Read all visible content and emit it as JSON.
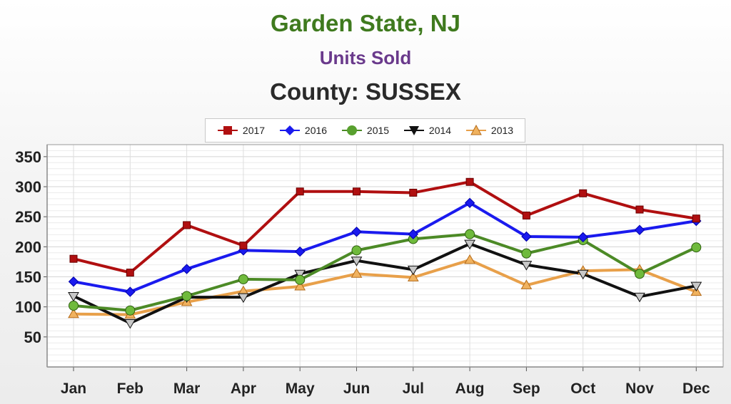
{
  "chart_data": {
    "type": "line",
    "title": "Garden State, NJ",
    "subtitle": "Units Sold",
    "subtitle2": "County: SUSSEX",
    "xlabel": "",
    "ylabel": "",
    "ylim": [
      0,
      370
    ],
    "yticks": [
      50,
      100,
      150,
      200,
      250,
      300,
      350
    ],
    "grid": true,
    "legend_position": "top-center",
    "categories": [
      "Jan",
      "Feb",
      "Mar",
      "Apr",
      "May",
      "Jun",
      "Jul",
      "Aug",
      "Sep",
      "Oct",
      "Nov",
      "Dec"
    ],
    "series": [
      {
        "name": "2017",
        "color": "#b00f10",
        "marker": "square",
        "values": [
          180,
          157,
          236,
          202,
          292,
          292,
          290,
          308,
          252,
          289,
          262,
          247
        ]
      },
      {
        "name": "2016",
        "color": "#1a1aee",
        "marker": "diamond",
        "values": [
          142,
          125,
          163,
          194,
          192,
          225,
          221,
          273,
          217,
          216,
          228,
          243
        ]
      },
      {
        "name": "2015",
        "color": "#4c8a26",
        "marker": "circle",
        "values": [
          102,
          94,
          118,
          146,
          145,
          194,
          213,
          221,
          189,
          211,
          155,
          199
        ]
      },
      {
        "name": "2014",
        "color": "#111111",
        "marker": "triangle-down",
        "values": [
          118,
          73,
          116,
          116,
          155,
          177,
          162,
          205,
          170,
          155,
          117,
          135
        ]
      },
      {
        "name": "2013",
        "color": "#e8a04a",
        "marker": "triangle-up",
        "values": [
          88,
          87,
          108,
          126,
          134,
          155,
          149,
          178,
          136,
          160,
          162,
          125
        ]
      }
    ]
  }
}
